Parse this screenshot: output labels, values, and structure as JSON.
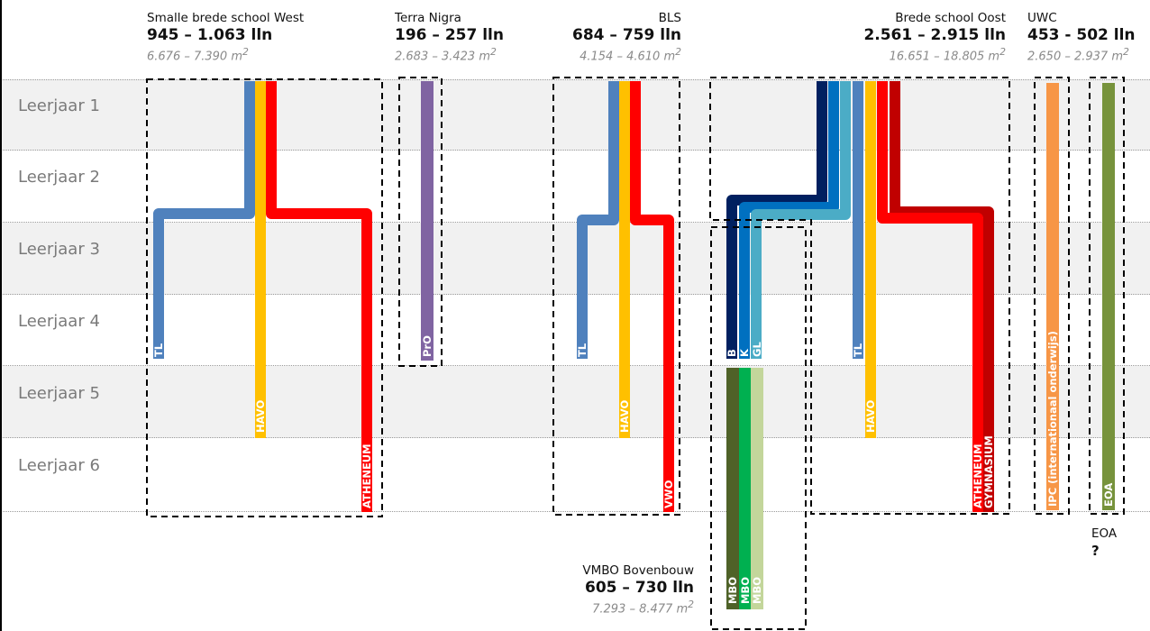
{
  "years": [
    "Leerjaar 1",
    "Leerjaar 2",
    "Leerjaar 3",
    "Leerjaar 4",
    "Leerjaar 5",
    "Leerjaar 6"
  ],
  "schools": {
    "west": {
      "name": "Smalle brede school West",
      "count": "945 – 1.063 lln",
      "area": "6.676 – 7.390 m",
      "area_unit": "2"
    },
    "terra": {
      "name": "Terra Nigra",
      "count": "196 – 257 lln",
      "area": "2.683 – 3.423 m",
      "area_unit": "2"
    },
    "bls": {
      "name": "BLS",
      "count": "684 – 759 lln",
      "area": "4.154 – 4.610 m",
      "area_unit": "2"
    },
    "oost": {
      "name": "Brede school Oost",
      "count": "2.561 – 2.915 lln",
      "area": "16.651 – 18.805 m",
      "area_unit": "2"
    },
    "uwc": {
      "name": "UWC",
      "count": "453 - 502 lln",
      "area": "2.650 – 2.937 m",
      "area_unit": "2"
    },
    "vmbo": {
      "name": "VMBO Bovenbouw",
      "count": "605 – 730 lln",
      "area": "7.293 – 8.477 m",
      "area_unit": "2"
    },
    "eoa": {
      "name": "EOA",
      "count": "?"
    }
  },
  "stream_labels": {
    "west_tl": "TL",
    "west_havo": "HAVO",
    "west_ath": "ATHENEUM",
    "terra_pro": "PrO",
    "bls_tl": "TL",
    "bls_havo": "HAVO",
    "bls_vwo": "VWO",
    "vmbo_b": "B",
    "vmbo_k": "K",
    "vmbo_gl": "GL",
    "mbo_1": "MBO",
    "mbo_2": "MBO",
    "mbo_3": "MBO",
    "oost_tl": "TL",
    "oost_havo": "HAVO",
    "oost_ath": "ATHENEUM",
    "oost_gym": "GYMNASIUM",
    "uwc_ipc": "IPC (internationaal onderwijs)",
    "eoa": "EOA"
  },
  "colors": {
    "tl": "#4f81bd",
    "havo": "#ffc000",
    "vwo": "#ff0000",
    "gym": "#c00000",
    "pro": "#8064a2",
    "b": "#002060",
    "k": "#0070c0",
    "gl": "#4bacc6",
    "mbo_dark": "#4f6228",
    "mbo_mid": "#00b050",
    "mbo_light": "#c3d69b",
    "ipc": "#f79646",
    "eoa": "#77933c"
  }
}
